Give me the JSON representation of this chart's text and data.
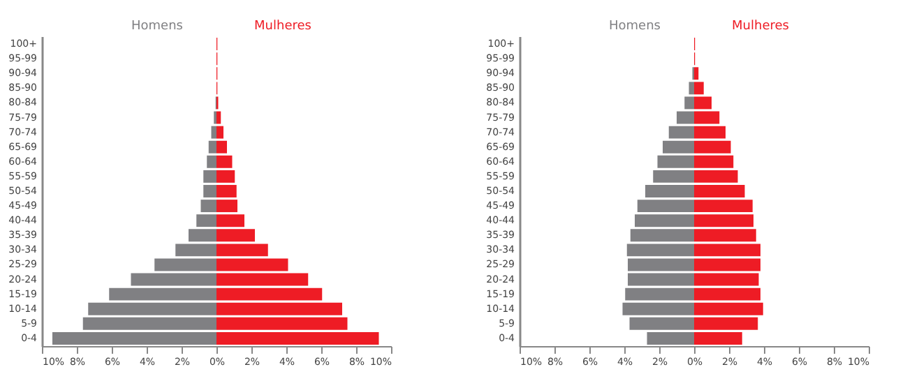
{
  "chart_data": [
    {
      "type": "bar",
      "orientation": "horizontal",
      "categories": [
        "100+",
        "95-99",
        "90-94",
        "85-90",
        "80-84",
        "75-79",
        "70-74",
        "65-69",
        "60-64",
        "55-59",
        "50-54",
        "45-49",
        "40-44",
        "35-39",
        "30-34",
        "25-29",
        "20-24",
        "15-19",
        "10-14",
        "5-9",
        "0-4"
      ],
      "series": [
        {
          "name": "Homens",
          "color": "#808083",
          "values": [
            0,
            0,
            0,
            0,
            -0.05,
            -0.15,
            -0.3,
            -0.45,
            -0.55,
            -0.75,
            -0.75,
            -0.9,
            -1.15,
            -1.6,
            -2.35,
            -3.55,
            -4.9,
            -6.15,
            -7.35,
            -7.65,
            -9.4
          ]
        },
        {
          "name": "Mulheres",
          "color": "#ee1c25",
          "values": [
            0.05,
            0.05,
            0.05,
            0.05,
            0.1,
            0.25,
            0.4,
            0.6,
            0.9,
            1.05,
            1.15,
            1.2,
            1.6,
            2.2,
            2.95,
            4.1,
            5.25,
            6.05,
            7.2,
            7.5,
            9.3
          ]
        }
      ],
      "xlim": [
        -10,
        10
      ],
      "xticks": [
        {
          "value": -10,
          "label": "10%"
        },
        {
          "value": -8,
          "label": "8%"
        },
        {
          "value": -6,
          "label": "6%"
        },
        {
          "value": -4,
          "label": "4%"
        },
        {
          "value": -2,
          "label": "2%"
        },
        {
          "value": 0,
          "label": "0%"
        },
        {
          "value": 2,
          "label": "2%"
        },
        {
          "value": 4,
          "label": "4%"
        },
        {
          "value": 6,
          "label": "6%"
        },
        {
          "value": 8,
          "label": "8%"
        },
        {
          "value": 10,
          "label": "10%"
        }
      ],
      "stacked": true,
      "grid": false
    },
    {
      "type": "bar",
      "orientation": "horizontal",
      "categories": [
        "100+",
        "95-99",
        "90-94",
        "85-90",
        "80-84",
        "75-79",
        "70-74",
        "65-69",
        "60-64",
        "55-59",
        "50-54",
        "45-49",
        "40-44",
        "35-39",
        "30-34",
        "25-29",
        "20-24",
        "15-19",
        "10-14",
        "5-9",
        "0-4"
      ],
      "series": [
        {
          "name": "Homens",
          "color": "#808083",
          "values": [
            0,
            0,
            -0.1,
            -0.3,
            -0.55,
            -1.0,
            -1.45,
            -1.8,
            -2.1,
            -2.35,
            -2.8,
            -3.25,
            -3.4,
            -3.65,
            -3.85,
            -3.8,
            -3.8,
            -3.95,
            -4.1,
            -3.7,
            -2.7
          ]
        },
        {
          "name": "Mulheres",
          "color": "#ee1c25",
          "values": [
            0.05,
            0.05,
            0.25,
            0.55,
            1.0,
            1.45,
            1.8,
            2.1,
            2.25,
            2.5,
            2.9,
            3.35,
            3.4,
            3.55,
            3.8,
            3.8,
            3.7,
            3.8,
            3.95,
            3.65,
            2.75
          ]
        }
      ],
      "xlim": [
        -10,
        10
      ],
      "xticks": [
        {
          "value": -10,
          "label": "10%"
        },
        {
          "value": -8,
          "label": "8%"
        },
        {
          "value": -6,
          "label": "6%"
        },
        {
          "value": -4,
          "label": "4%"
        },
        {
          "value": -2,
          "label": "2%"
        },
        {
          "value": 0,
          "label": "0%"
        },
        {
          "value": 2,
          "label": "2%"
        },
        {
          "value": 4,
          "label": "4%"
        },
        {
          "value": 6,
          "label": "6%"
        },
        {
          "value": 8,
          "label": "8%"
        },
        {
          "value": 10,
          "label": "10%"
        }
      ],
      "stacked": true,
      "grid": false
    }
  ]
}
